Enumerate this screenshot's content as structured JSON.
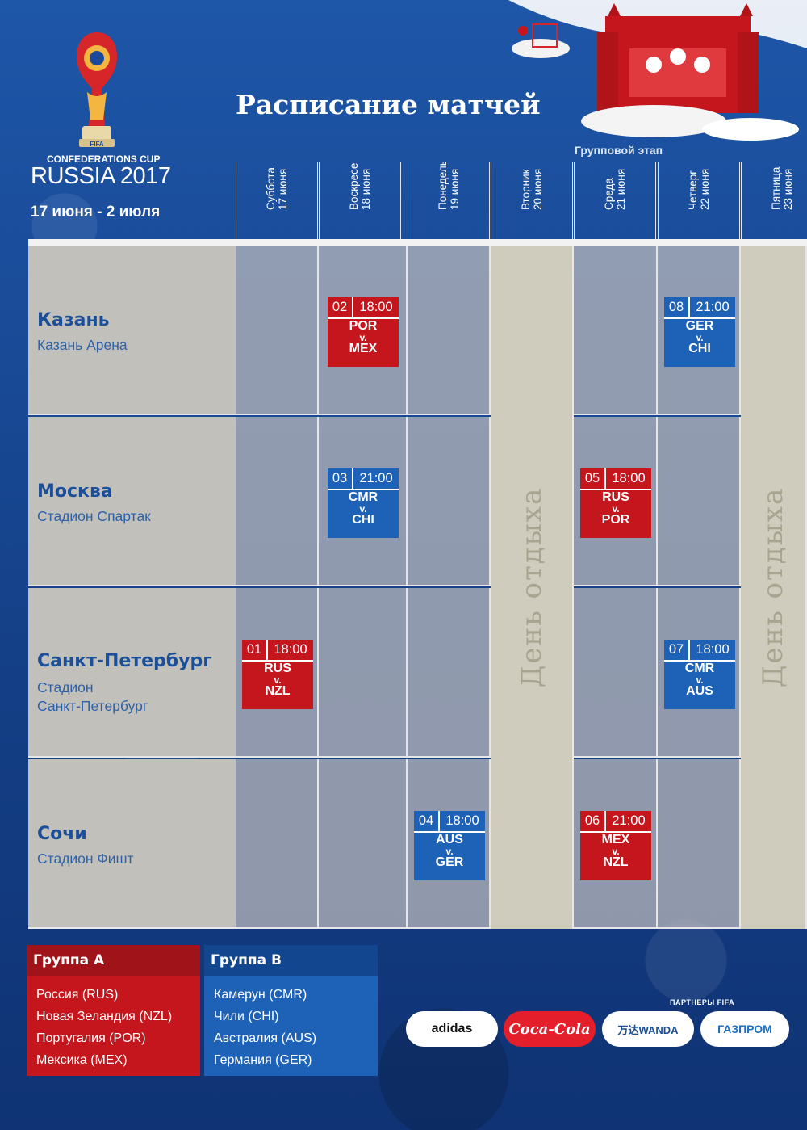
{
  "logo": {
    "trophy_text": "FIFA",
    "cup_title": "CONFEDERATIONS CUP",
    "event": "RUSSIA 2017",
    "dates": "17 июня - 2 июля"
  },
  "page_title": "Расписание матчей",
  "stage_label": "Групповой этап",
  "days": [
    {
      "weekday": "Суббота",
      "date": "17 июня"
    },
    {
      "weekday": "Воскресенье",
      "date": "18 июня"
    },
    {
      "weekday": "Понедельник",
      "date": "19 июня"
    },
    {
      "weekday": "Вторник",
      "date": "20 июня"
    },
    {
      "weekday": "Среда",
      "date": "21 июня"
    },
    {
      "weekday": "Четверг",
      "date": "22 июня"
    },
    {
      "weekday": "Пятница",
      "date": "23 июня"
    }
  ],
  "rest_day_label": "День отдыха",
  "cities": [
    {
      "name": "Казань",
      "venue_lines": [
        "Казань Арена"
      ]
    },
    {
      "name": "Москва",
      "venue_lines": [
        "Стадион Спартак"
      ]
    },
    {
      "name": "Санкт-Петербург",
      "venue_lines": [
        "Стадион",
        "Санкт-Петербург"
      ]
    },
    {
      "name": "Сочи",
      "venue_lines": [
        "Стадион Фишт"
      ]
    }
  ],
  "matches": [
    {
      "num": "01",
      "time": "18:00",
      "home": "RUS",
      "away": "NZL",
      "v": "v.",
      "group": "A",
      "color": "#c4161c"
    },
    {
      "num": "02",
      "time": "18:00",
      "home": "POR",
      "away": "MEX",
      "v": "v.",
      "group": "A",
      "color": "#c4161c"
    },
    {
      "num": "03",
      "time": "21:00",
      "home": "CMR",
      "away": "CHI",
      "v": "v.",
      "group": "B",
      "color": "#1d62b7"
    },
    {
      "num": "04",
      "time": "18:00",
      "home": "AUS",
      "away": "GER",
      "v": "v.",
      "group": "B",
      "color": "#1d62b7"
    },
    {
      "num": "05",
      "time": "18:00",
      "home": "RUS",
      "away": "POR",
      "v": "v.",
      "group": "A",
      "color": "#c4161c"
    },
    {
      "num": "06",
      "time": "21:00",
      "home": "MEX",
      "away": "NZL",
      "v": "v.",
      "group": "A",
      "color": "#c4161c"
    },
    {
      "num": "07",
      "time": "18:00",
      "home": "CMR",
      "away": "AUS",
      "v": "v.",
      "group": "B",
      "color": "#1d62b7"
    },
    {
      "num": "08",
      "time": "21:00",
      "home": "GER",
      "away": "CHI",
      "v": "v.",
      "group": "B",
      "color": "#1d62b7"
    }
  ],
  "groups": [
    {
      "title": "Группа А",
      "head_color": "#a01419",
      "body_color": "#c4161c",
      "teams": [
        "Россия (RUS)",
        "Новая Зеландия (NZL)",
        "Португалия (POR)",
        "Мексика (MEX)"
      ]
    },
    {
      "title": "Группа В",
      "head_color": "#12468f",
      "body_color": "#1d62b7",
      "teams": [
        "Камерун (CMR)",
        "Чили (CHI)",
        "Австралия (AUS)",
        "Германия (GER)"
      ]
    }
  ],
  "partners_label": "ПАРТНЕРЫ FIFA",
  "sponsors": [
    {
      "name": "adidas",
      "color": "#111111"
    },
    {
      "name": "Coca-Cola",
      "color": "#ffffff",
      "bg": "#e41e2b"
    },
    {
      "name": "万达WANDA",
      "color": "#1b4f98"
    },
    {
      "name": "ГАЗПРОМ",
      "color": "#1b6fc2"
    }
  ]
}
